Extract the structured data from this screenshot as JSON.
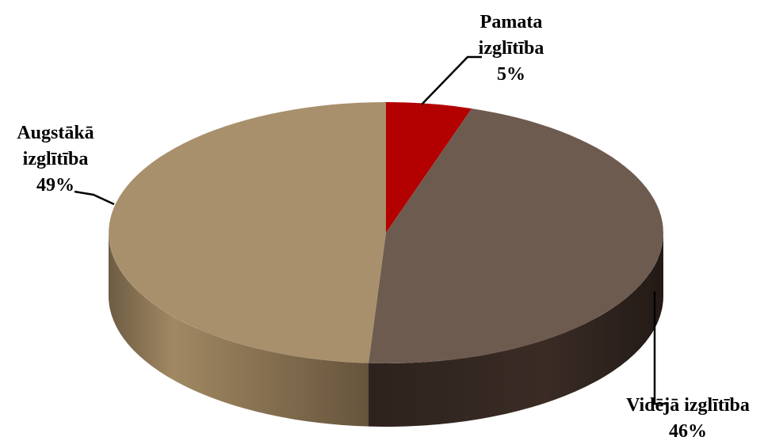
{
  "chart_data": {
    "type": "pie",
    "style": "3d",
    "title": "",
    "slices": [
      {
        "name": "Pamata izglītība",
        "label_lines": [
          "Pamata",
          "izglītība",
          "5%"
        ],
        "value": 5,
        "color": "#b30000"
      },
      {
        "name": "Vidējā izglītība",
        "label_lines": [
          "Vidējā izglītība",
          "46%"
        ],
        "value": 46,
        "color": "#6e5b50"
      },
      {
        "name": "Augstākā izglītība",
        "label_lines": [
          "Augstākā",
          "izglītība",
          "49%"
        ],
        "value": 49,
        "color": "#a8906c"
      }
    ]
  }
}
